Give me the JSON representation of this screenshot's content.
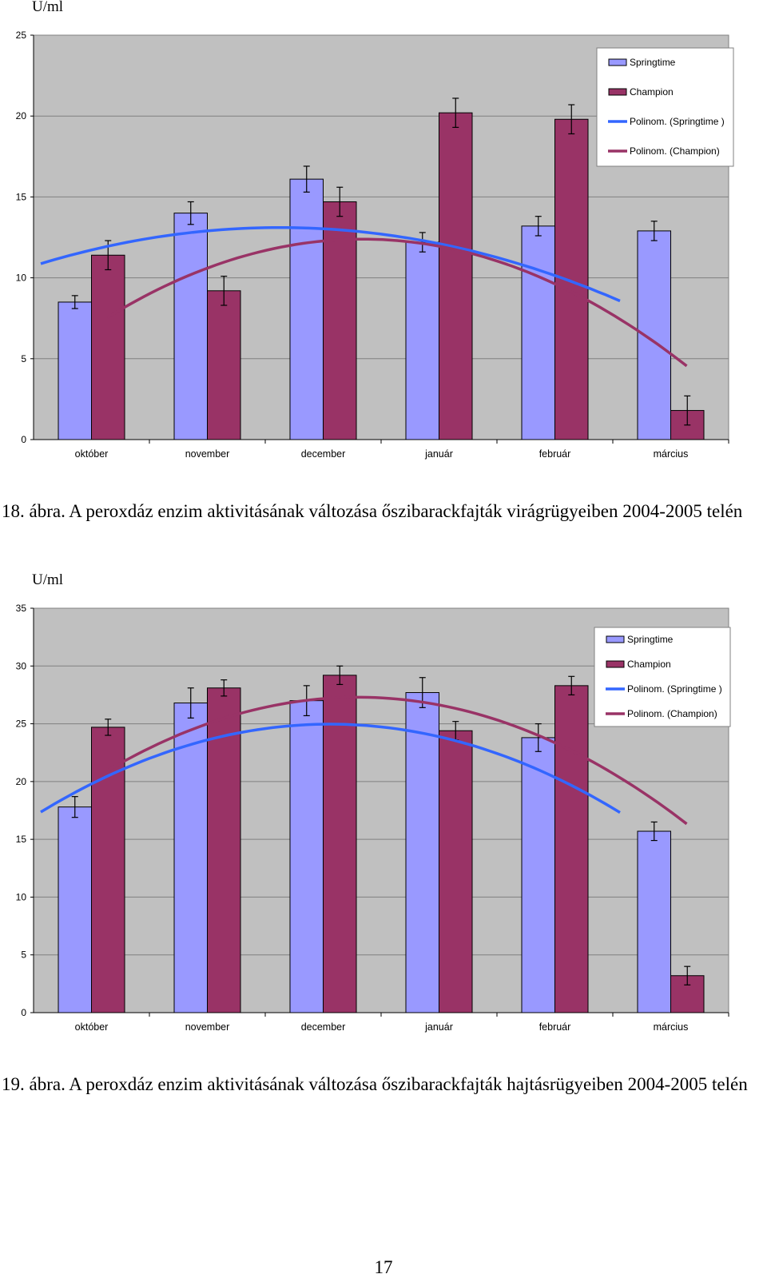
{
  "chart_data": [
    {
      "type": "bar",
      "ylabel": "U/ml",
      "ylim": [
        0,
        25
      ],
      "yticks": [
        0,
        5,
        10,
        15,
        20,
        25
      ],
      "categories": [
        "október",
        "november",
        "december",
        "január",
        "február",
        "március"
      ],
      "series": [
        {
          "name": "Springtime",
          "values": [
            8.5,
            14.0,
            16.1,
            12.2,
            13.2,
            12.9
          ],
          "errors": [
            0.4,
            0.7,
            0.8,
            0.6,
            0.6,
            0.6
          ],
          "color": "#9999ff"
        },
        {
          "name": "Champion",
          "values": [
            11.4,
            9.2,
            14.7,
            20.2,
            19.8,
            1.8
          ],
          "errors": [
            0.9,
            0.9,
            0.9,
            0.9,
            0.9,
            0.9
          ],
          "color": "#993366"
        }
      ],
      "trendlines": [
        {
          "name": "Polinom. (Springtime )",
          "type": "polynomial",
          "color": "#3366ff",
          "x_range": [
            0.7,
            5.7
          ],
          "coeffs": [
            9.1,
            2.9,
            -0.525
          ]
        },
        {
          "name": "Polinom. (Champion)",
          "type": "polynomial",
          "color": "#993366",
          "x_range": [
            1.0,
            6.0
          ],
          "coeffs": [
            2.15,
            6.4,
            -1.0
          ]
        }
      ],
      "legend": "top-right",
      "grid": true,
      "background": "#c0c0c0"
    },
    {
      "type": "bar",
      "ylabel": "U/ml",
      "ylim": [
        0,
        35
      ],
      "yticks": [
        0,
        5,
        10,
        15,
        20,
        25,
        30,
        35
      ],
      "categories": [
        "október",
        "november",
        "december",
        "január",
        "február",
        "március"
      ],
      "series": [
        {
          "name": "Springtime",
          "values": [
            17.8,
            26.8,
            27.0,
            27.7,
            23.8,
            15.7
          ],
          "errors": [
            0.9,
            1.3,
            1.3,
            1.3,
            1.2,
            0.8
          ],
          "color": "#9999ff"
        },
        {
          "name": "Champion",
          "values": [
            24.7,
            28.1,
            29.2,
            24.4,
            28.3,
            3.2
          ],
          "errors": [
            0.7,
            0.7,
            0.8,
            0.8,
            0.8,
            0.8
          ],
          "color": "#993366"
        }
      ],
      "trendlines": [
        {
          "name": "Polinom. (Springtime )",
          "type": "polynomial",
          "color": "#3366ff",
          "x_range": [
            0.7,
            5.7
          ],
          "coeffs": [
            12.5,
            7.8,
            -1.22
          ]
        },
        {
          "name": "Polinom. (Champion)",
          "type": "polynomial",
          "color": "#993366",
          "x_range": [
            1.0,
            6.0
          ],
          "coeffs": [
            13.7,
            8.6,
            -1.36
          ]
        }
      ],
      "legend": "top-right",
      "grid": true,
      "background": "#c0c0c0"
    }
  ],
  "captions": [
    "18. ábra. A peroxdáz enzim aktivitásának változása őszibarackfajták virágrügyeiben 2004-2005 telén",
    "19. ábra. A peroxdáz enzim aktivitásának változása őszibarackfajták hajtásrügyeiben 2004-2005 telén"
  ],
  "page_number": "17"
}
